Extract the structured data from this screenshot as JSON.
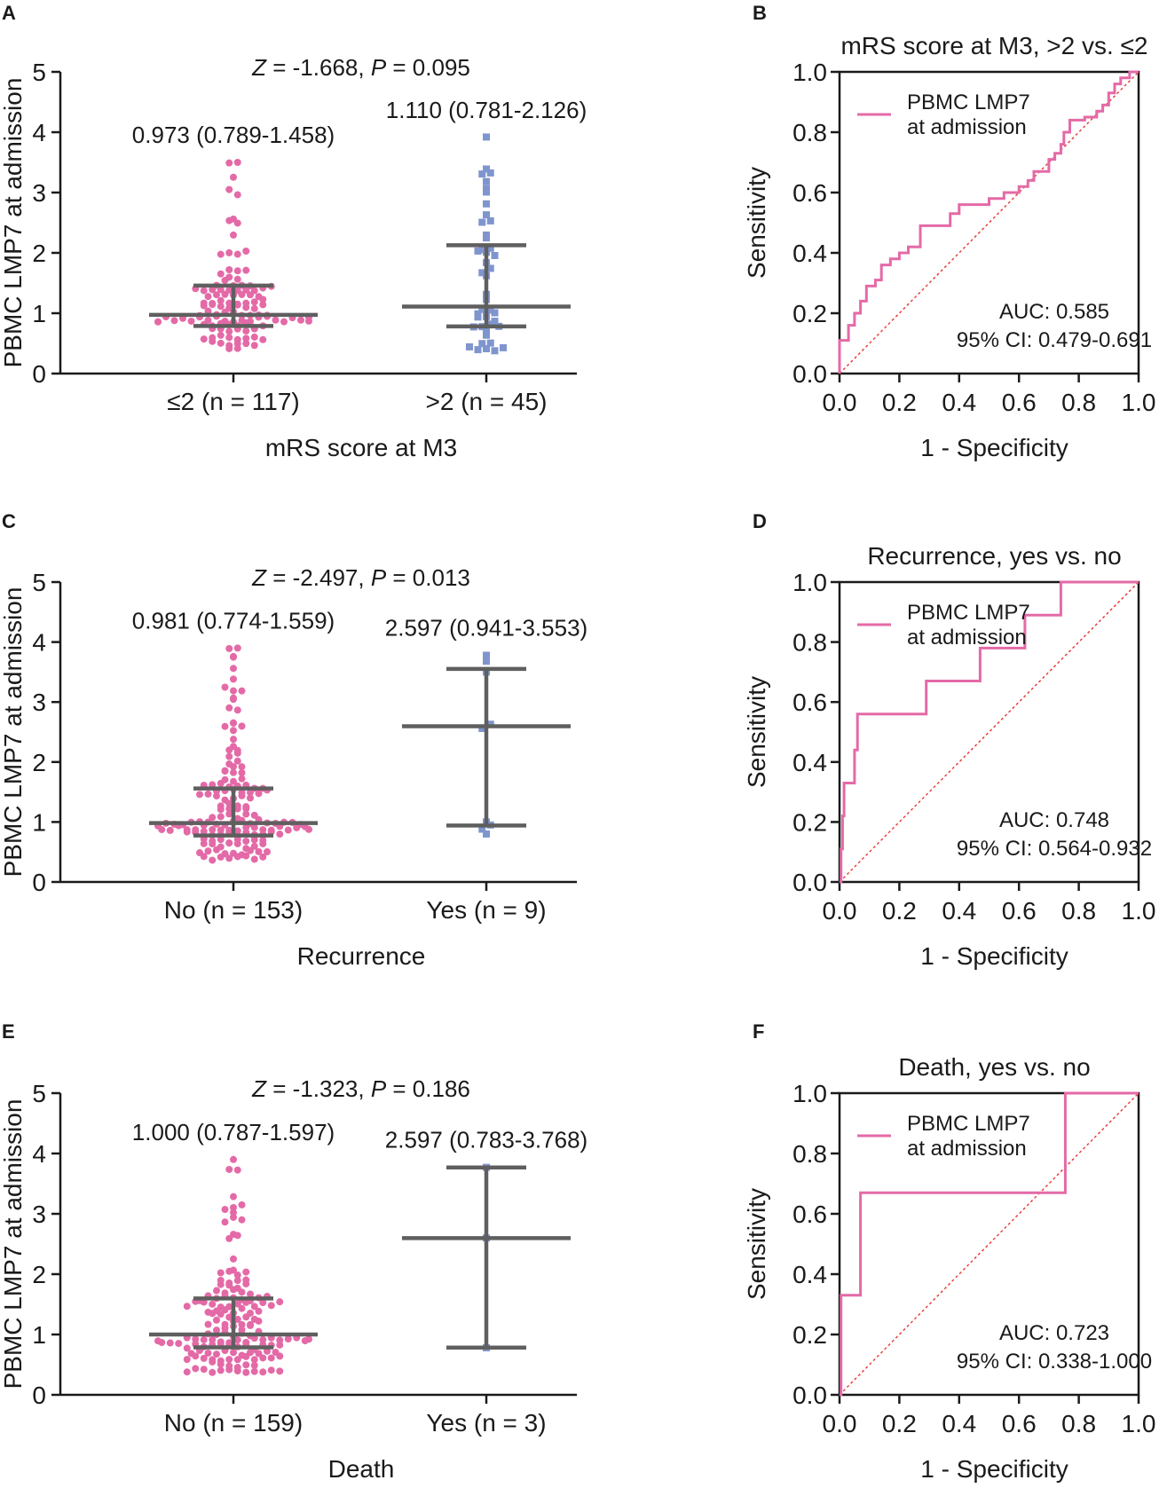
{
  "colors": {
    "pink": "#e46aa7",
    "blue": "#7f95ce",
    "gray": "#5f5f5f",
    "diag": "#e8413f",
    "axis": "#1a1a1a"
  },
  "chart_data": [
    {
      "panel": "A",
      "type": "scatter",
      "title": "",
      "stat": {
        "zlabel": "Z",
        "zval": " = -1.668, ",
        "plabel": "P",
        "pval": " = 0.095"
      },
      "ylabel": "PBMC LMP7 at admission",
      "xlabel": "mRS score at M3",
      "ylim": [
        0,
        5
      ],
      "yticks": [
        "0",
        "1",
        "2",
        "3",
        "4",
        "5"
      ],
      "groups": [
        {
          "label": "≤2 (n = 117)",
          "n": 117,
          "median": 0.973,
          "q1": 0.789,
          "q3": 1.458,
          "max": 3.5,
          "annotation": "0.973 (0.789-1.458)",
          "color": "pink",
          "marker": "circle"
        },
        {
          "label": ">2 (n = 45)",
          "n": 45,
          "median": 1.11,
          "q1": 0.781,
          "q3": 2.126,
          "max": 3.92,
          "annotation": "1.110 (0.781-2.126)",
          "color": "blue",
          "marker": "square"
        }
      ]
    },
    {
      "panel": "B",
      "type": "line",
      "title": "mRS score at M3, >2 vs. ≤2",
      "xlabel": "1 - Specificity",
      "ylabel": "Sensitivity",
      "xlim": [
        0,
        1
      ],
      "ylim": [
        0,
        1
      ],
      "xticks": [
        "0.0",
        "0.2",
        "0.4",
        "0.6",
        "0.8",
        "1.0"
      ],
      "yticks": [
        "0.0",
        "0.2",
        "0.4",
        "0.6",
        "0.8",
        "1.0"
      ],
      "legend": [
        "PBMC LMP7",
        "at admission"
      ],
      "auc": "AUC: 0.585",
      "ci": "95% CI: 0.479-0.691",
      "roc": [
        [
          0,
          0
        ],
        [
          0,
          0.11
        ],
        [
          0.03,
          0.11
        ],
        [
          0.03,
          0.16
        ],
        [
          0.05,
          0.16
        ],
        [
          0.05,
          0.2
        ],
        [
          0.07,
          0.2
        ],
        [
          0.07,
          0.24
        ],
        [
          0.09,
          0.24
        ],
        [
          0.09,
          0.29
        ],
        [
          0.12,
          0.29
        ],
        [
          0.12,
          0.31
        ],
        [
          0.14,
          0.31
        ],
        [
          0.14,
          0.36
        ],
        [
          0.17,
          0.36
        ],
        [
          0.17,
          0.38
        ],
        [
          0.2,
          0.38
        ],
        [
          0.2,
          0.4
        ],
        [
          0.23,
          0.4
        ],
        [
          0.23,
          0.42
        ],
        [
          0.27,
          0.42
        ],
        [
          0.27,
          0.49
        ],
        [
          0.37,
          0.49
        ],
        [
          0.37,
          0.53
        ],
        [
          0.4,
          0.53
        ],
        [
          0.4,
          0.56
        ],
        [
          0.5,
          0.56
        ],
        [
          0.5,
          0.58
        ],
        [
          0.55,
          0.58
        ],
        [
          0.55,
          0.6
        ],
        [
          0.6,
          0.6
        ],
        [
          0.6,
          0.62
        ],
        [
          0.63,
          0.62
        ],
        [
          0.63,
          0.64
        ],
        [
          0.65,
          0.64
        ],
        [
          0.65,
          0.67
        ],
        [
          0.7,
          0.67
        ],
        [
          0.7,
          0.71
        ],
        [
          0.72,
          0.71
        ],
        [
          0.72,
          0.73
        ],
        [
          0.74,
          0.73
        ],
        [
          0.74,
          0.76
        ],
        [
          0.75,
          0.76
        ],
        [
          0.75,
          0.8
        ],
        [
          0.77,
          0.8
        ],
        [
          0.77,
          0.84
        ],
        [
          0.82,
          0.84
        ],
        [
          0.82,
          0.85
        ],
        [
          0.86,
          0.85
        ],
        [
          0.86,
          0.87
        ],
        [
          0.88,
          0.87
        ],
        [
          0.88,
          0.89
        ],
        [
          0.9,
          0.89
        ],
        [
          0.9,
          0.93
        ],
        [
          0.92,
          0.93
        ],
        [
          0.92,
          0.96
        ],
        [
          0.94,
          0.96
        ],
        [
          0.94,
          0.98
        ],
        [
          0.97,
          0.98
        ],
        [
          0.97,
          1
        ],
        [
          1,
          1
        ]
      ]
    },
    {
      "panel": "C",
      "type": "scatter",
      "title": "",
      "stat": {
        "zlabel": "Z",
        "zval": " = -2.497, ",
        "plabel": "P",
        "pval": " = 0.013"
      },
      "ylabel": "PBMC LMP7 at admission",
      "xlabel": "Recurrence",
      "ylim": [
        0,
        5
      ],
      "yticks": [
        "0",
        "1",
        "2",
        "3",
        "4",
        "5"
      ],
      "groups": [
        {
          "label": "No (n = 153)",
          "n": 153,
          "median": 0.981,
          "q1": 0.774,
          "q3": 1.559,
          "max": 3.9,
          "annotation": "0.981 (0.774-1.559)",
          "color": "pink",
          "marker": "circle"
        },
        {
          "label": "Yes (n = 9)",
          "n": 9,
          "median": 2.597,
          "q1": 0.941,
          "q3": 3.553,
          "max": 3.78,
          "annotation": "2.597 (0.941-3.553)",
          "color": "blue",
          "marker": "square",
          "points": [
            3.78,
            3.68,
            3.5,
            2.63,
            2.56,
            1.0,
            0.95,
            0.88,
            0.8
          ]
        }
      ]
    },
    {
      "panel": "D",
      "type": "line",
      "title": "Recurrence, yes vs. no",
      "xlabel": "1 - Specificity",
      "ylabel": "Sensitivity",
      "xlim": [
        0,
        1
      ],
      "ylim": [
        0,
        1
      ],
      "xticks": [
        "0.0",
        "0.2",
        "0.4",
        "0.6",
        "0.8",
        "1.0"
      ],
      "yticks": [
        "0.0",
        "0.2",
        "0.4",
        "0.6",
        "0.8",
        "1.0"
      ],
      "legend": [
        "PBMC LMP7",
        "at admission"
      ],
      "auc": "AUC: 0.748",
      "ci": "95% CI: 0.564-0.932",
      "roc": [
        [
          0,
          0
        ],
        [
          0.005,
          0
        ],
        [
          0.005,
          0.11
        ],
        [
          0.01,
          0.11
        ],
        [
          0.01,
          0.22
        ],
        [
          0.015,
          0.22
        ],
        [
          0.015,
          0.33
        ],
        [
          0.05,
          0.33
        ],
        [
          0.05,
          0.44
        ],
        [
          0.06,
          0.44
        ],
        [
          0.06,
          0.56
        ],
        [
          0.29,
          0.56
        ],
        [
          0.29,
          0.67
        ],
        [
          0.47,
          0.67
        ],
        [
          0.47,
          0.78
        ],
        [
          0.62,
          0.78
        ],
        [
          0.62,
          0.89
        ],
        [
          0.74,
          0.89
        ],
        [
          0.74,
          1
        ],
        [
          1,
          1
        ]
      ]
    },
    {
      "panel": "E",
      "type": "scatter",
      "title": "",
      "stat": {
        "zlabel": "Z",
        "zval": " = -1.323, ",
        "plabel": "P",
        "pval": " = 0.186"
      },
      "ylabel": "PBMC LMP7 at admission",
      "xlabel": "Death",
      "ylim": [
        0,
        5
      ],
      "yticks": [
        "0",
        "1",
        "2",
        "3",
        "4",
        "5"
      ],
      "groups": [
        {
          "label": "No (n = 159)",
          "n": 159,
          "median": 1.0,
          "q1": 0.787,
          "q3": 1.597,
          "max": 3.9,
          "annotation": "1.000 (0.787-1.597)",
          "color": "pink",
          "marker": "circle"
        },
        {
          "label": "Yes (n = 3)",
          "n": 3,
          "median": 2.597,
          "q1": 0.783,
          "q3": 3.768,
          "max": 3.77,
          "annotation": "2.597 (0.783-3.768)",
          "color": "blue",
          "marker": "square",
          "points": [
            3.77,
            2.6,
            0.78
          ]
        }
      ]
    },
    {
      "panel": "F",
      "type": "line",
      "title": "Death, yes vs. no",
      "xlabel": "1 - Specificity",
      "ylabel": "Sensitivity",
      "xlim": [
        0,
        1
      ],
      "ylim": [
        0,
        1
      ],
      "xticks": [
        "0.0",
        "0.2",
        "0.4",
        "0.6",
        "0.8",
        "1.0"
      ],
      "yticks": [
        "0.0",
        "0.2",
        "0.4",
        "0.6",
        "0.8",
        "1.0"
      ],
      "legend": [
        "PBMC LMP7",
        "at admission"
      ],
      "auc": "AUC: 0.723",
      "ci": "95% CI: 0.338-1.000",
      "roc": [
        [
          0,
          0
        ],
        [
          0.005,
          0
        ],
        [
          0.005,
          0.33
        ],
        [
          0.07,
          0.33
        ],
        [
          0.07,
          0.67
        ],
        [
          0.755,
          0.67
        ],
        [
          0.755,
          1
        ],
        [
          1,
          1
        ]
      ]
    }
  ]
}
